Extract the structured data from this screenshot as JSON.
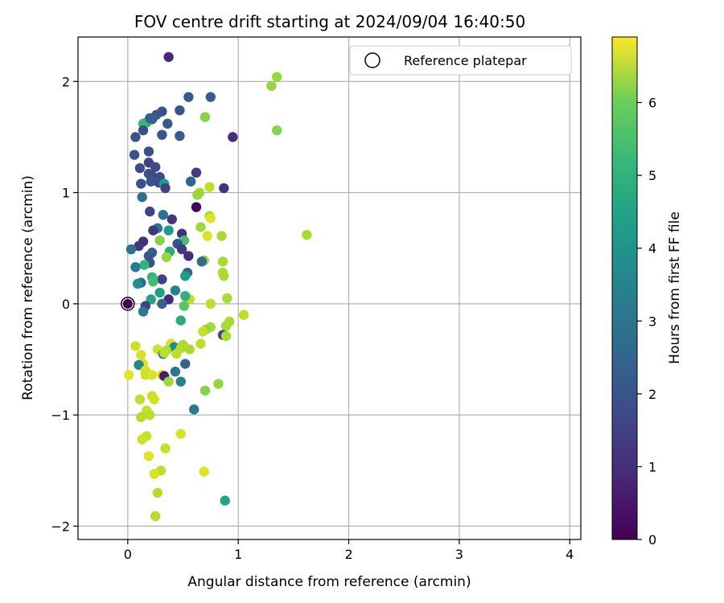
{
  "chart_data": {
    "type": "scatter",
    "title": "FOV centre drift starting at 2024/09/04 16:40:50",
    "xlabel": "Angular distance from reference (arcmin)",
    "ylabel": "Rotation from reference (arcmin)",
    "xlim": [
      -0.45,
      4.1
    ],
    "ylim": [
      -2.12,
      2.4
    ],
    "xticks": [
      0,
      1,
      2,
      3,
      4
    ],
    "yticks": [
      -2,
      -1,
      0,
      1,
      2
    ],
    "grid": true,
    "legend": {
      "placement": "top-right",
      "entries": [
        "Reference platepar"
      ]
    },
    "reference_point": {
      "x": 0,
      "y": 0,
      "label": "Reference platepar"
    },
    "colorbar": {
      "label": "Hours from first FF file",
      "range": [
        0,
        6.9
      ],
      "ticks": [
        0,
        1,
        2,
        3,
        4,
        5,
        6
      ],
      "colormap": "viridis"
    },
    "points": [
      {
        "x": 0.37,
        "y": 2.22,
        "c": 0.8
      },
      {
        "x": 1.35,
        "y": 2.04,
        "c": 5.8
      },
      {
        "x": 1.3,
        "y": 1.96,
        "c": 5.8
      },
      {
        "x": 0.55,
        "y": 1.86,
        "c": 2.0
      },
      {
        "x": 0.75,
        "y": 1.86,
        "c": 2.0
      },
      {
        "x": 0.47,
        "y": 1.74,
        "c": 1.8
      },
      {
        "x": 0.31,
        "y": 1.73,
        "c": 1.8
      },
      {
        "x": 0.7,
        "y": 1.68,
        "c": 5.6
      },
      {
        "x": 0.26,
        "y": 1.7,
        "c": 1.9
      },
      {
        "x": 0.22,
        "y": 1.66,
        "c": 2.0
      },
      {
        "x": 0.17,
        "y": 1.63,
        "c": 4.2
      },
      {
        "x": 0.14,
        "y": 1.62,
        "c": 4.6
      },
      {
        "x": 0.2,
        "y": 1.67,
        "c": 2.1
      },
      {
        "x": 0.36,
        "y": 1.62,
        "c": 2.0
      },
      {
        "x": 0.14,
        "y": 1.56,
        "c": 1.6
      },
      {
        "x": 1.35,
        "y": 1.56,
        "c": 5.6
      },
      {
        "x": 0.07,
        "y": 1.5,
        "c": 1.7
      },
      {
        "x": 0.31,
        "y": 1.52,
        "c": 1.8
      },
      {
        "x": 0.47,
        "y": 1.51,
        "c": 2.0
      },
      {
        "x": 0.95,
        "y": 1.5,
        "c": 0.9
      },
      {
        "x": 0.19,
        "y": 1.37,
        "c": 1.6
      },
      {
        "x": 0.06,
        "y": 1.34,
        "c": 1.7
      },
      {
        "x": 0.19,
        "y": 1.27,
        "c": 1.4
      },
      {
        "x": 0.11,
        "y": 1.22,
        "c": 1.5
      },
      {
        "x": 0.25,
        "y": 1.23,
        "c": 1.6
      },
      {
        "x": 0.62,
        "y": 1.18,
        "c": 1.2
      },
      {
        "x": 0.19,
        "y": 1.17,
        "c": 1.8
      },
      {
        "x": 0.22,
        "y": 1.15,
        "c": 1.5
      },
      {
        "x": 0.29,
        "y": 1.14,
        "c": 1.5
      },
      {
        "x": 0.57,
        "y": 1.1,
        "c": 2.2
      },
      {
        "x": 0.21,
        "y": 1.1,
        "c": 1.8
      },
      {
        "x": 0.12,
        "y": 1.08,
        "c": 1.7
      },
      {
        "x": 0.28,
        "y": 1.09,
        "c": 1.6
      },
      {
        "x": 0.33,
        "y": 1.08,
        "c": 3.8
      },
      {
        "x": 0.34,
        "y": 1.04,
        "c": 1.3
      },
      {
        "x": 0.74,
        "y": 1.05,
        "c": 6.2
      },
      {
        "x": 0.87,
        "y": 1.04,
        "c": 1.0
      },
      {
        "x": 0.65,
        "y": 1.0,
        "c": 6.0
      },
      {
        "x": 0.63,
        "y": 0.98,
        "c": 5.8
      },
      {
        "x": 0.13,
        "y": 0.96,
        "c": 2.5
      },
      {
        "x": 0.62,
        "y": 0.87,
        "c": 0.1
      },
      {
        "x": 0.2,
        "y": 0.83,
        "c": 1.4
      },
      {
        "x": 0.32,
        "y": 0.8,
        "c": 2.6
      },
      {
        "x": 0.74,
        "y": 0.79,
        "c": 6.0
      },
      {
        "x": 0.75,
        "y": 0.77,
        "c": 6.6
      },
      {
        "x": 0.4,
        "y": 0.76,
        "c": 1.1
      },
      {
        "x": 0.66,
        "y": 0.69,
        "c": 5.9
      },
      {
        "x": 0.27,
        "y": 0.68,
        "c": 2.7
      },
      {
        "x": 0.23,
        "y": 0.66,
        "c": 1.1
      },
      {
        "x": 0.37,
        "y": 0.66,
        "c": 3.8
      },
      {
        "x": 0.49,
        "y": 0.63,
        "c": 1.0
      },
      {
        "x": 0.72,
        "y": 0.61,
        "c": 6.5
      },
      {
        "x": 0.85,
        "y": 0.61,
        "c": 6.0
      },
      {
        "x": 1.62,
        "y": 0.62,
        "c": 6.0
      },
      {
        "x": 0.29,
        "y": 0.57,
        "c": 5.6
      },
      {
        "x": 0.51,
        "y": 0.57,
        "c": 4.8
      },
      {
        "x": 0.14,
        "y": 0.56,
        "c": 0.9
      },
      {
        "x": 0.45,
        "y": 0.54,
        "c": 1.8
      },
      {
        "x": 0.1,
        "y": 0.52,
        "c": 1.1
      },
      {
        "x": 0.03,
        "y": 0.49,
        "c": 2.6
      },
      {
        "x": 0.38,
        "y": 0.47,
        "c": 4.2
      },
      {
        "x": 0.49,
        "y": 0.49,
        "c": 1.2
      },
      {
        "x": 0.22,
        "y": 0.46,
        "c": 2.0
      },
      {
        "x": 0.19,
        "y": 0.43,
        "c": 1.9
      },
      {
        "x": 0.55,
        "y": 0.43,
        "c": 0.9
      },
      {
        "x": 0.35,
        "y": 0.42,
        "c": 5.8
      },
      {
        "x": 0.69,
        "y": 0.39,
        "c": 5.7
      },
      {
        "x": 0.2,
        "y": 0.37,
        "c": 1.8
      },
      {
        "x": 0.67,
        "y": 0.38,
        "c": 2.4
      },
      {
        "x": 0.86,
        "y": 0.38,
        "c": 6.0
      },
      {
        "x": 0.15,
        "y": 0.35,
        "c": 4.5
      },
      {
        "x": 0.07,
        "y": 0.33,
        "c": 2.8
      },
      {
        "x": 0.86,
        "y": 0.28,
        "c": 6.0
      },
      {
        "x": 0.54,
        "y": 0.28,
        "c": 2.1
      },
      {
        "x": 0.52,
        "y": 0.25,
        "c": 3.8
      },
      {
        "x": 0.87,
        "y": 0.25,
        "c": 6.0
      },
      {
        "x": 0.22,
        "y": 0.24,
        "c": 4.5
      },
      {
        "x": 0.31,
        "y": 0.22,
        "c": 1.4
      },
      {
        "x": 0.23,
        "y": 0.2,
        "c": 4.8
      },
      {
        "x": 0.12,
        "y": 0.19,
        "c": 2.3
      },
      {
        "x": 0.09,
        "y": 0.18,
        "c": 3.4
      },
      {
        "x": 0.43,
        "y": 0.12,
        "c": 3.0
      },
      {
        "x": 0.29,
        "y": 0.1,
        "c": 3.9
      },
      {
        "x": 0.56,
        "y": 0.04,
        "c": 6.2
      },
      {
        "x": 0.52,
        "y": 0.07,
        "c": 4.4
      },
      {
        "x": 0.37,
        "y": 0.04,
        "c": 0.8
      },
      {
        "x": 0.21,
        "y": 0.04,
        "c": 4.0
      },
      {
        "x": 0.9,
        "y": 0.05,
        "c": 6.0
      },
      {
        "x": 0.75,
        "y": 0.0,
        "c": 6.2
      },
      {
        "x": 0.31,
        "y": 0.0,
        "c": 2.2
      },
      {
        "x": 0.16,
        "y": -0.02,
        "c": 1.3
      },
      {
        "x": 0.51,
        "y": -0.02,
        "c": 5.1
      },
      {
        "x": 0.14,
        "y": -0.07,
        "c": 2.8
      },
      {
        "x": 1.05,
        "y": -0.1,
        "c": 6.2
      },
      {
        "x": 0.48,
        "y": -0.15,
        "c": 4.2
      },
      {
        "x": 0.92,
        "y": -0.16,
        "c": 6.0
      },
      {
        "x": 0.89,
        "y": -0.2,
        "c": 6.0
      },
      {
        "x": 0.75,
        "y": -0.21,
        "c": 6.0
      },
      {
        "x": 0.71,
        "y": -0.23,
        "c": 5.8
      },
      {
        "x": 0.68,
        "y": -0.25,
        "c": 6.3
      },
      {
        "x": 0.86,
        "y": -0.28,
        "c": 1.6
      },
      {
        "x": 0.89,
        "y": -0.29,
        "c": 6.0
      },
      {
        "x": 0.66,
        "y": -0.36,
        "c": 6.2
      },
      {
        "x": 0.39,
        "y": -0.36,
        "c": 6.5
      },
      {
        "x": 0.5,
        "y": -0.37,
        "c": 6.0
      },
      {
        "x": 0.07,
        "y": -0.38,
        "c": 6.4
      },
      {
        "x": 0.42,
        "y": -0.39,
        "c": 3.2
      },
      {
        "x": 0.48,
        "y": -0.4,
        "c": 6.1
      },
      {
        "x": 0.56,
        "y": -0.41,
        "c": 6.0
      },
      {
        "x": 0.27,
        "y": -0.41,
        "c": 6.4
      },
      {
        "x": 0.35,
        "y": -0.42,
        "c": 6.0
      },
      {
        "x": 0.32,
        "y": -0.45,
        "c": 2.6
      },
      {
        "x": 0.33,
        "y": -0.44,
        "c": 6.2
      },
      {
        "x": 0.44,
        "y": -0.45,
        "c": 6.2
      },
      {
        "x": 0.12,
        "y": -0.46,
        "c": 6.5
      },
      {
        "x": 0.52,
        "y": -0.54,
        "c": 2.2
      },
      {
        "x": 0.14,
        "y": -0.54,
        "c": 6.5
      },
      {
        "x": 0.1,
        "y": -0.55,
        "c": 3.2
      },
      {
        "x": 0.16,
        "y": -0.6,
        "c": 6.5
      },
      {
        "x": 0.43,
        "y": -0.61,
        "c": 2.8
      },
      {
        "x": 0.01,
        "y": -0.64,
        "c": 6.6
      },
      {
        "x": 0.16,
        "y": -0.64,
        "c": 6.4
      },
      {
        "x": 0.22,
        "y": -0.64,
        "c": 6.5
      },
      {
        "x": 0.31,
        "y": -0.64,
        "c": 6.4
      },
      {
        "x": 0.33,
        "y": -0.65,
        "c": 0.5
      },
      {
        "x": 0.37,
        "y": -0.7,
        "c": 5.9
      },
      {
        "x": 0.48,
        "y": -0.7,
        "c": 3.0
      },
      {
        "x": 0.82,
        "y": -0.72,
        "c": 5.8
      },
      {
        "x": 0.7,
        "y": -0.78,
        "c": 5.6
      },
      {
        "x": 0.22,
        "y": -0.83,
        "c": 6.3
      },
      {
        "x": 0.11,
        "y": -0.86,
        "c": 6.2
      },
      {
        "x": 0.24,
        "y": -0.86,
        "c": 6.4
      },
      {
        "x": 0.6,
        "y": -0.95,
        "c": 2.8
      },
      {
        "x": 0.17,
        "y": -0.96,
        "c": 6.3
      },
      {
        "x": 0.2,
        "y": -1.0,
        "c": 6.2
      },
      {
        "x": 0.12,
        "y": -1.02,
        "c": 6.1
      },
      {
        "x": 0.48,
        "y": -1.17,
        "c": 6.5
      },
      {
        "x": 0.17,
        "y": -1.19,
        "c": 6.3
      },
      {
        "x": 0.13,
        "y": -1.22,
        "c": 6.4
      },
      {
        "x": 0.34,
        "y": -1.3,
        "c": 6.3
      },
      {
        "x": 0.19,
        "y": -1.37,
        "c": 6.6
      },
      {
        "x": 0.3,
        "y": -1.5,
        "c": 6.2
      },
      {
        "x": 0.69,
        "y": -1.51,
        "c": 6.6
      },
      {
        "x": 0.24,
        "y": -1.53,
        "c": 6.5
      },
      {
        "x": 0.27,
        "y": -1.7,
        "c": 6.1
      },
      {
        "x": 0.88,
        "y": -1.77,
        "c": 4.0
      },
      {
        "x": 0.25,
        "y": -1.91,
        "c": 6.1
      }
    ]
  }
}
